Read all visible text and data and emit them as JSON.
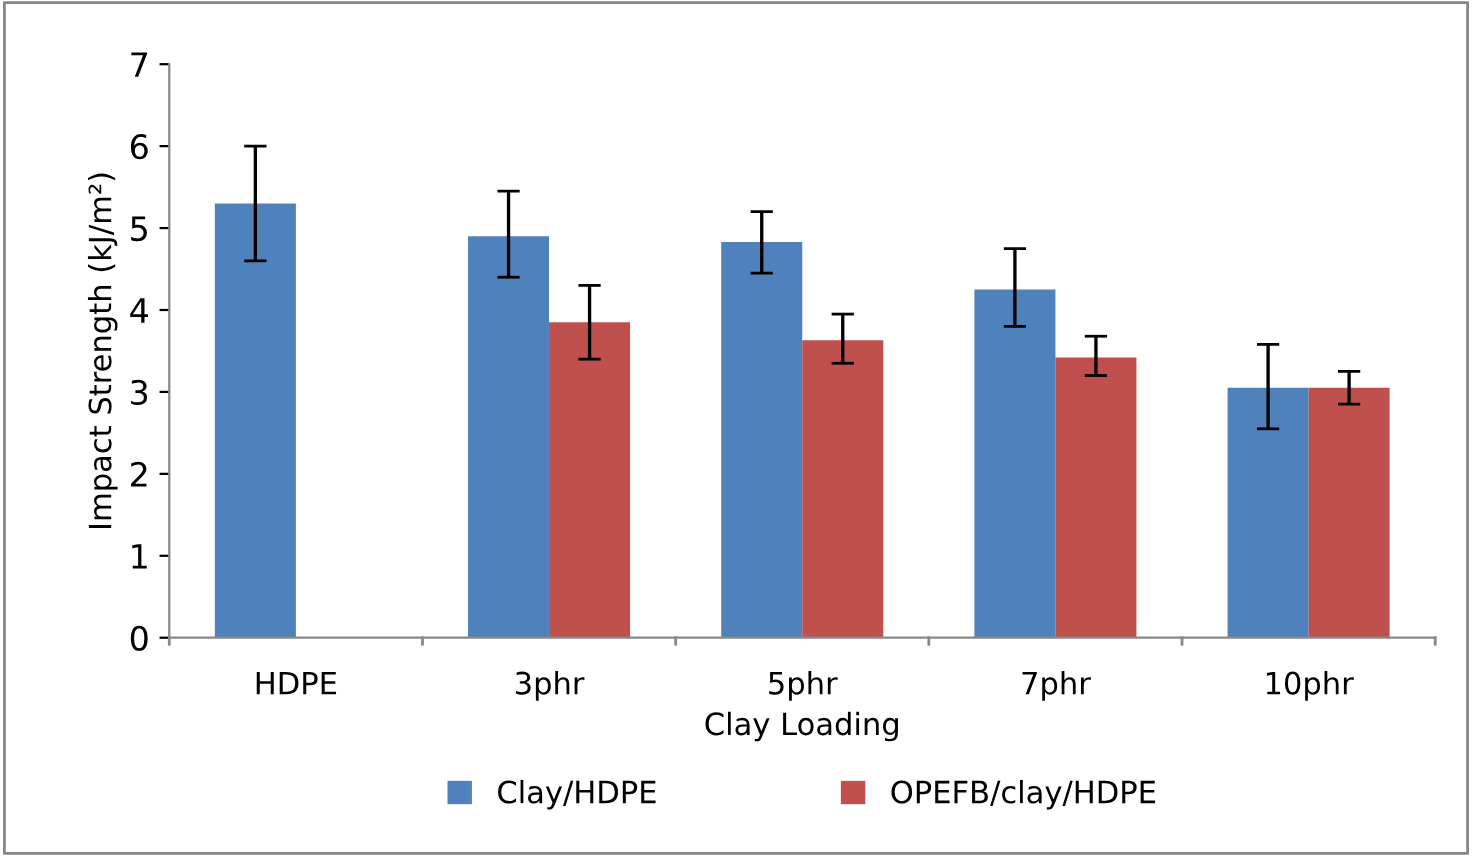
{
  "chart_data": {
    "type": "bar",
    "xlabel": "Clay Loading",
    "ylabel": "Impact Strength (kJ/m²)",
    "categories": [
      "HDPE",
      "3phr",
      "5phr",
      "7phr",
      "10phr"
    ],
    "series": [
      {
        "name": "Clay/HDPE",
        "color": "#4f81bd",
        "values": [
          5.3,
          4.9,
          4.83,
          4.25,
          3.05
        ],
        "errors": [
          [
            4.6,
            6.0
          ],
          [
            4.4,
            5.45
          ],
          [
            4.45,
            5.2
          ],
          [
            3.8,
            4.75
          ],
          [
            2.55,
            3.58
          ]
        ]
      },
      {
        "name": "OPEFB/clay/HDPE",
        "color": "#c0504d",
        "values": [
          null,
          3.85,
          3.63,
          3.42,
          3.05
        ],
        "errors": [
          null,
          [
            3.4,
            4.3
          ],
          [
            3.35,
            3.95
          ],
          [
            3.2,
            3.68
          ],
          [
            2.85,
            3.25
          ]
        ]
      }
    ],
    "ylim": [
      0,
      7
    ],
    "yticks": [
      0,
      1,
      2,
      3,
      4,
      5,
      6,
      7
    ],
    "grid": false,
    "legend": "bottom"
  }
}
